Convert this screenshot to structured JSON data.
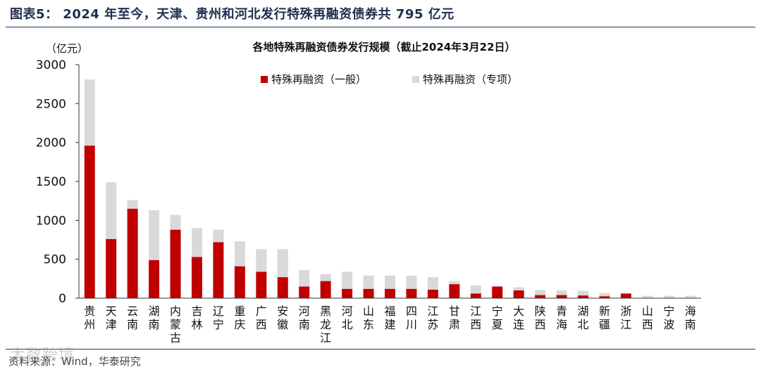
{
  "figure": {
    "title": "图表5： 2024 年至今，天津、贵州和河北发行特殊再融资债券共 795 亿元",
    "source": "资料来源：Wind，华泰研究",
    "watermark": "大数跨境"
  },
  "colors": {
    "general": "#c00000",
    "special": "#d9d9d9",
    "rule": "#1f3a5f"
  },
  "chart_data": {
    "type": "bar",
    "stacked": true,
    "title": "各地特殊再融资债券发行规模（截止2024年3月22日）",
    "ylabel": "（亿元）",
    "xlabel": "",
    "ylim": [
      0,
      3000
    ],
    "yticks": [
      0,
      500,
      1000,
      1500,
      2000,
      2500,
      3000
    ],
    "legend": "top-center",
    "grid": false,
    "categories": [
      "贵州",
      "天津",
      "云南",
      "湖南",
      "内蒙古",
      "吉林",
      "辽宁",
      "重庆",
      "广西",
      "安徽",
      "河南",
      "黑龙江",
      "河北",
      "山东",
      "福建",
      "四川",
      "江苏",
      "甘肃",
      "江西",
      "宁夏",
      "大连",
      "陕西",
      "青海",
      "湖北",
      "新疆",
      "浙江",
      "山西",
      "宁波",
      "海南"
    ],
    "series": [
      {
        "name": "特殊再融资（一般）",
        "color": "#c00000",
        "values": [
          1960,
          760,
          1150,
          490,
          880,
          530,
          720,
          410,
          340,
          270,
          150,
          220,
          120,
          120,
          120,
          120,
          110,
          180,
          60,
          150,
          100,
          40,
          40,
          35,
          25,
          60,
          0,
          0,
          0
        ]
      },
      {
        "name": "特殊再融资（专项）",
        "color": "#d9d9d9",
        "values": [
          850,
          730,
          110,
          640,
          190,
          370,
          160,
          320,
          290,
          360,
          210,
          90,
          220,
          170,
          170,
          170,
          160,
          40,
          105,
          0,
          40,
          65,
          60,
          60,
          40,
          0,
          30,
          30,
          30
        ]
      }
    ]
  }
}
